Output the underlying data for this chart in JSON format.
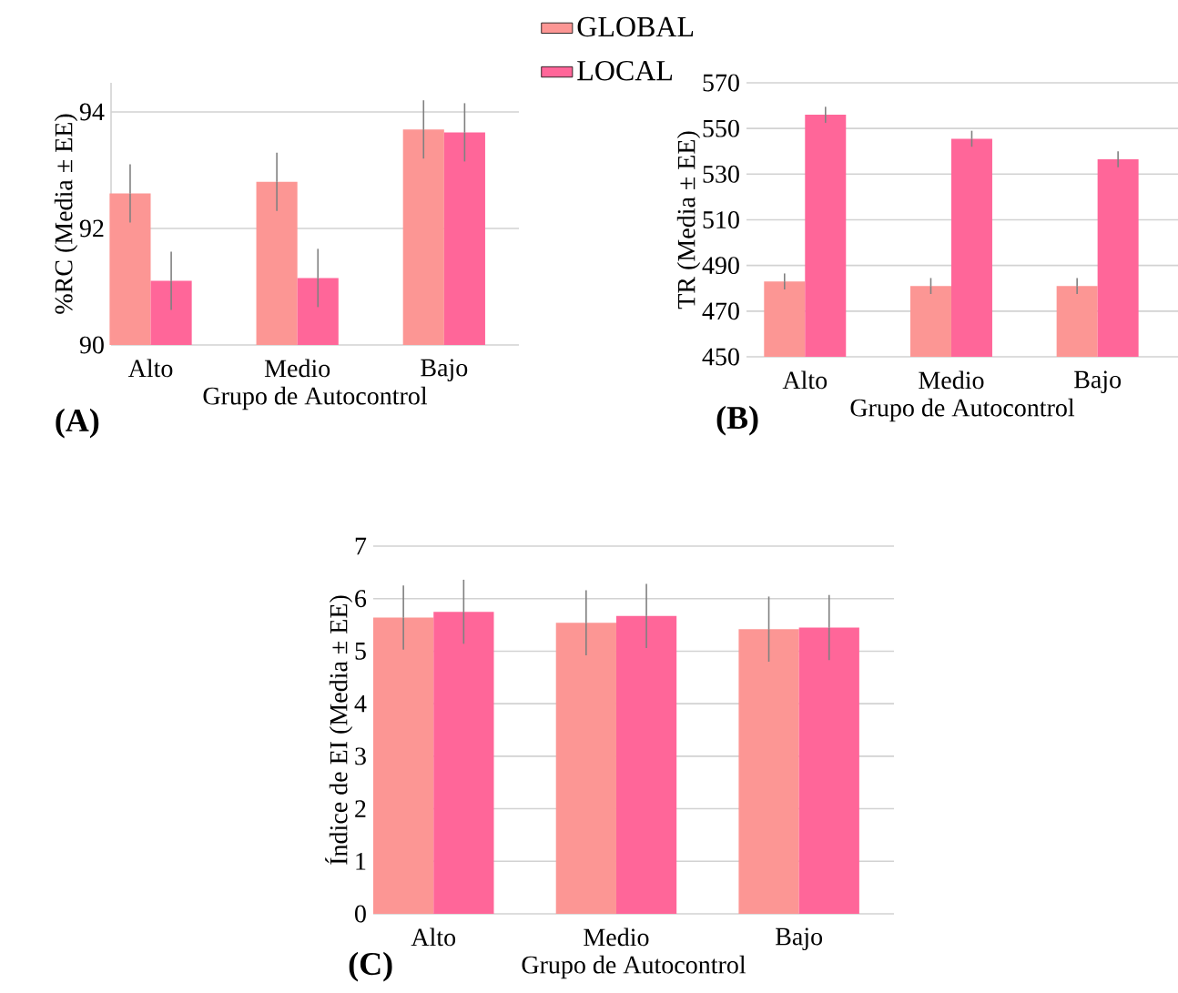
{
  "chart_data": [
    {
      "type": "bar",
      "categories": [
        "Alto",
        "Medio",
        "Bajo"
      ],
      "xlabel": "Grupo de Autocontrol",
      "ylabel": "%RC (Media ± EE)",
      "ylim": [
        90,
        94.5
      ],
      "yticks": [
        90,
        92,
        94
      ],
      "grid": "y",
      "legend": "top right",
      "annotations": [
        "(A)"
      ],
      "series": [
        {
          "name": "GLOBAL",
          "color": "#fc9694",
          "values": [
            92.6,
            92.8,
            93.7
          ],
          "errors": [
            0.5,
            0.5,
            0.5
          ]
        },
        {
          "name": "LOCAL",
          "color": "#ff6699",
          "values": [
            91.1,
            91.15,
            93.65
          ],
          "errors": [
            0.5,
            0.5,
            0.5
          ]
        }
      ]
    },
    {
      "type": "bar",
      "categories": [
        "Alto",
        "Medio",
        "Bajo"
      ],
      "xlabel": "Grupo de Autocontrol",
      "ylabel": "TR (Media ± EE)",
      "ylim": [
        450,
        570
      ],
      "yticks": [
        450,
        470,
        490,
        510,
        530,
        550,
        570
      ],
      "grid": "y",
      "annotations": [
        "(B)"
      ],
      "series": [
        {
          "color": "#fc9694",
          "values": [
            483,
            481,
            481
          ],
          "errors": [
            3.5,
            3.5,
            3.5
          ]
        },
        {
          "color": "#ff6699",
          "values": [
            556,
            545.5,
            536.5
          ],
          "errors": [
            3.5,
            3.5,
            3.5
          ]
        }
      ]
    },
    {
      "type": "bar",
      "categories": [
        "Alto",
        "Medio",
        "Bajo"
      ],
      "xlabel": "Grupo de Autocontrol",
      "ylabel": "Índice de EI (Media ± EE)",
      "ylim": [
        0,
        7
      ],
      "yticks": [
        0,
        1,
        2,
        3,
        4,
        5,
        6,
        7
      ],
      "grid": "y",
      "annotations": [
        "(C)"
      ],
      "series": [
        {
          "color": "#fc9694",
          "values": [
            5.64,
            5.54,
            5.42
          ],
          "errors": [
            0.61,
            0.62,
            0.62
          ]
        },
        {
          "color": "#ff6699",
          "values": [
            5.75,
            5.67,
            5.45
          ],
          "errors": [
            0.61,
            0.61,
            0.62
          ]
        }
      ]
    }
  ]
}
